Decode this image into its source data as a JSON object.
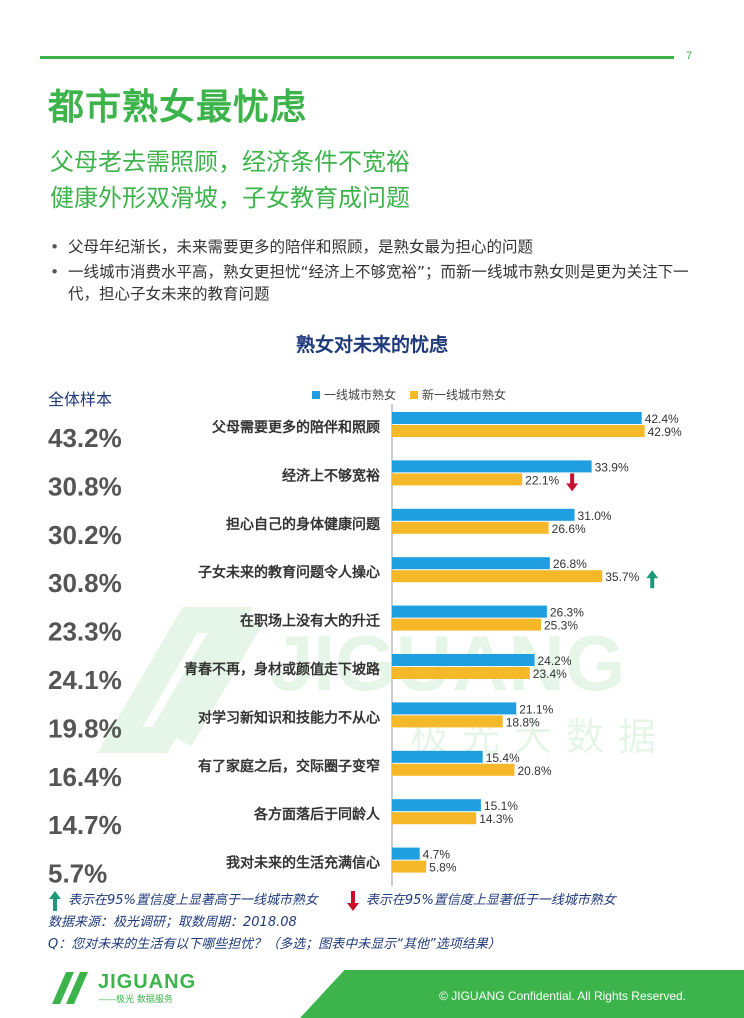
{
  "page_number": "7",
  "title": "都市熟女最忧虑",
  "subtitle_lines": [
    "父母老去需照顾，经济条件不宽裕",
    "健康外形双滑坡，子女教育成问题"
  ],
  "bullets": [
    "父母年纪渐长，未来需要更多的陪伴和照顾，是熟女最为担心的问题",
    "一线城市消费水平高，熟女更担忧“经济上不够宽裕”；而新一线城市熟女则是更为关注下一代，担心子女未来的教育问题"
  ],
  "sample_header": "全体样本",
  "watermark": {
    "brand": "JIGUANG",
    "cn": "极光大数据"
  },
  "colors": {
    "series1": "#1f9ee0",
    "series2": "#f5b829",
    "up": "#1a9a7a",
    "down": "#c8102e",
    "accent": "#3cb44b",
    "navy": "#1f3a7a"
  },
  "chart_data": {
    "type": "bar",
    "orientation": "horizontal",
    "title": "熟女对未来的忧虑",
    "categories": [
      "父母需要更多的陪伴和照顾",
      "经济上不够宽裕",
      "担心自己的身体健康问题",
      "子女未来的教育问题令人操心",
      "在职场上没有大的升迁",
      "青春不再，身材或颜值走下坡路",
      "对学习新知识和技能力不从心",
      "有了家庭之后，交际圈子变窄",
      "各方面落后于同龄人",
      "我对未来的生活充满信心"
    ],
    "overall": [
      "43.2%",
      "30.8%",
      "30.2%",
      "30.8%",
      "23.3%",
      "24.1%",
      "19.8%",
      "16.4%",
      "14.7%",
      "5.7%"
    ],
    "series": [
      {
        "name": "一线城市熟女",
        "values": [
          42.4,
          33.9,
          31.0,
          26.8,
          26.3,
          24.2,
          21.1,
          15.4,
          15.1,
          4.7
        ]
      },
      {
        "name": "新一线城市熟女",
        "values": [
          42.9,
          22.1,
          26.6,
          35.7,
          25.3,
          23.4,
          18.8,
          20.8,
          14.3,
          5.8
        ]
      }
    ],
    "significance": {
      "higher": [
        3
      ],
      "lower": [
        1
      ]
    },
    "legend_position": "top",
    "xlim": [
      0,
      45
    ]
  },
  "notes": {
    "up_legend": "表示在95%置信度上显著高于一线城市熟女",
    "down_legend": "表示在95%置信度上显著低于一线城市熟女",
    "source": "数据来源：极光调研；取数周期：2018.08",
    "question": "Q：您对未来的生活有以下哪些担忧？（多选；图表中未显示“其他”选项结果）"
  },
  "footer": {
    "logo_text": "JIGUANG",
    "logo_sub": "——极光 数据服务",
    "copyright": "© JIGUANG Confidential. All Rights Reserved."
  }
}
